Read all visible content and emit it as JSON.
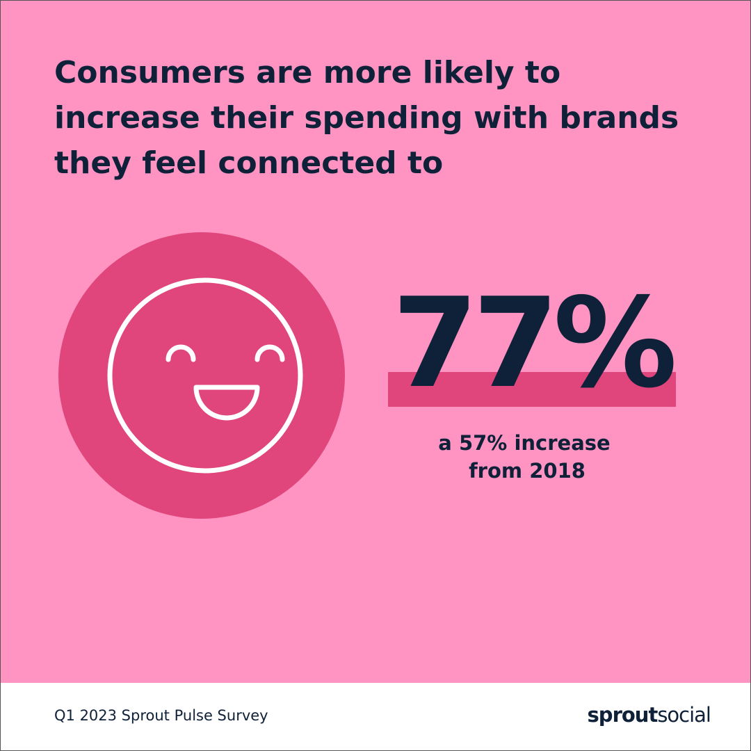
{
  "header": {
    "title": [
      "Consumers are more likely to",
      "increase their spending with brands",
      "they feel connected to"
    ]
  },
  "stat": {
    "value": "77%",
    "note": [
      "a 57% increase",
      "from 2018"
    ]
  },
  "footer": {
    "source": "Q1 2023 Sprout Pulse Survey",
    "logo": [
      "sprout",
      "social"
    ]
  }
}
